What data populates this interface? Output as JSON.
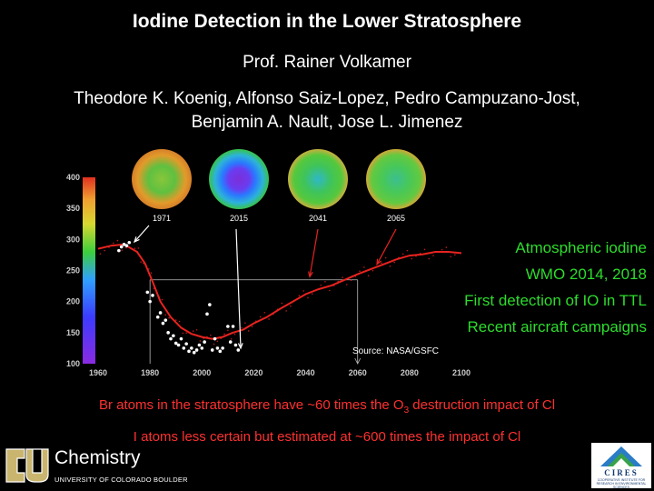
{
  "title": "Iodine Detection in the Lower Stratosphere",
  "presenter": "Prof. Rainer Volkamer",
  "authors": {
    "line1": "Theodore K. Koenig, Alfonso Saiz-Lopez, Pedro Campuzano-Jost,",
    "line2": "Benjamin A. Nault, Jose L. Jimenez"
  },
  "bullets": [
    "Atmospheric iodine",
    "WMO 2014, 2018",
    "First detection of IO in TTL",
    "Recent aircraft campaigns"
  ],
  "source": "Source: NASA/GSFC",
  "notes": {
    "line1_pre": "Br atoms in the stratosphere have ~60 times the O",
    "line1_sub": "3",
    "line1_post": " destruction impact of Cl",
    "line2": "I atoms less certain but estimated at ~600 times the impact of Cl"
  },
  "footer": {
    "department": "Chemistry",
    "university": "UNIVERSITY OF COLORADO BOULDER",
    "partner_logo_text": "CIRES",
    "partner_logo_subtext": "COOPERATIVE INSTITUTE FOR RESEARCH IN ENVIRONMENTAL SCIENCES"
  },
  "colors": {
    "background": "#000000",
    "bullets": "#2ddc2d",
    "notes": "#ff3030",
    "curve": "#e8231f"
  },
  "chart_data": {
    "type": "scatter",
    "xlim": [
      1960,
      2100
    ],
    "ylim": [
      100,
      400
    ],
    "x_ticks": [
      1960,
      1980,
      2000,
      2020,
      2040,
      2060,
      2080,
      2100
    ],
    "y_ticks": [
      100,
      150,
      200,
      250,
      300,
      350,
      400
    ],
    "globes": [
      {
        "year": "1971",
        "x": 1971
      },
      {
        "year": "2015",
        "x": 2015
      },
      {
        "year": "2041",
        "x": 2041
      },
      {
        "year": "2065",
        "x": 2065
      }
    ],
    "reference_level": 235,
    "reference_years": [
      1980,
      2060
    ],
    "series": [
      {
        "name": "",
        "type": "line",
        "x": [
          1960,
          1965,
          1970,
          1975,
          1978,
          1981,
          1984,
          1988,
          1992,
          1996,
          2000,
          2004,
          2008,
          2012,
          2016,
          2020,
          2025,
          2030,
          2035,
          2040,
          2045,
          2050,
          2055,
          2060,
          2065,
          2070,
          2075,
          2080,
          2085,
          2090,
          2095,
          2100
        ],
        "y": [
          285,
          290,
          292,
          280,
          262,
          232,
          200,
          175,
          158,
          148,
          143,
          140,
          143,
          150,
          155,
          165,
          175,
          188,
          200,
          212,
          220,
          226,
          235,
          244,
          252,
          260,
          268,
          274,
          276,
          280,
          280,
          278
        ]
      },
      {
        "name": "",
        "type": "scatter",
        "x": [
          1968,
          1969,
          1970,
          1971,
          1972,
          1979,
          1980,
          1981,
          1983,
          1984,
          1985,
          1986,
          1987,
          1988,
          1989,
          1990,
          1991,
          1992,
          1993,
          1994,
          1995,
          1996,
          1997,
          1998,
          1999,
          2000,
          2001,
          2002,
          2003,
          2004,
          2005,
          2006,
          2007,
          2008,
          2010,
          2011,
          2012,
          2013,
          2014
        ],
        "y": [
          282,
          288,
          292,
          290,
          295,
          215,
          200,
          210,
          175,
          182,
          165,
          170,
          150,
          140,
          145,
          133,
          130,
          140,
          125,
          132,
          120,
          125,
          118,
          122,
          130,
          125,
          135,
          180,
          195,
          122,
          140,
          125,
          120,
          125,
          160,
          135,
          160,
          130,
          122
        ]
      }
    ]
  }
}
